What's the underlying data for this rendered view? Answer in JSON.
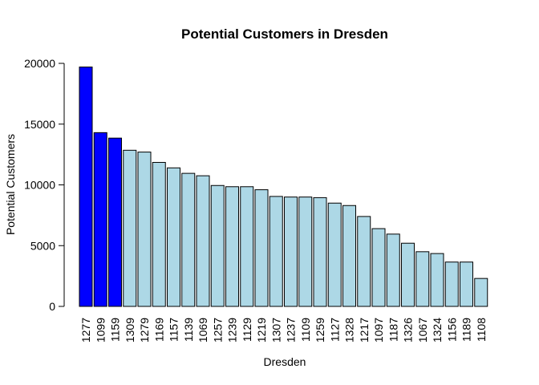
{
  "chart_data": {
    "type": "bar",
    "title": "Potential Customers in Dresden",
    "xlabel": "Dresden",
    "ylabel": "Potential Customers",
    "ylim": [
      0,
      20000
    ],
    "yticks": [
      "0",
      "5000",
      "10000",
      "15000",
      "20000"
    ],
    "grid": false,
    "colors": {
      "highlight": "#0000FF",
      "normal": "#ADD8E6",
      "border": "#000000"
    },
    "highlight_count": 3,
    "categories": [
      "1277",
      "1099",
      "1159",
      "1309",
      "1279",
      "1169",
      "1157",
      "1139",
      "1069",
      "1257",
      "1239",
      "1129",
      "1219",
      "1307",
      "1237",
      "1109",
      "1259",
      "1127",
      "1328",
      "1217",
      "1097",
      "1187",
      "1326",
      "1067",
      "1324",
      "1156",
      "1189",
      "1108"
    ],
    "values": [
      19700,
      14300,
      13850,
      12850,
      12700,
      11850,
      11400,
      10950,
      10750,
      9950,
      9850,
      9850,
      9600,
      9050,
      9000,
      9000,
      8950,
      8500,
      8300,
      7400,
      6400,
      5950,
      5200,
      4500,
      4350,
      3650,
      3650,
      2300
    ]
  }
}
